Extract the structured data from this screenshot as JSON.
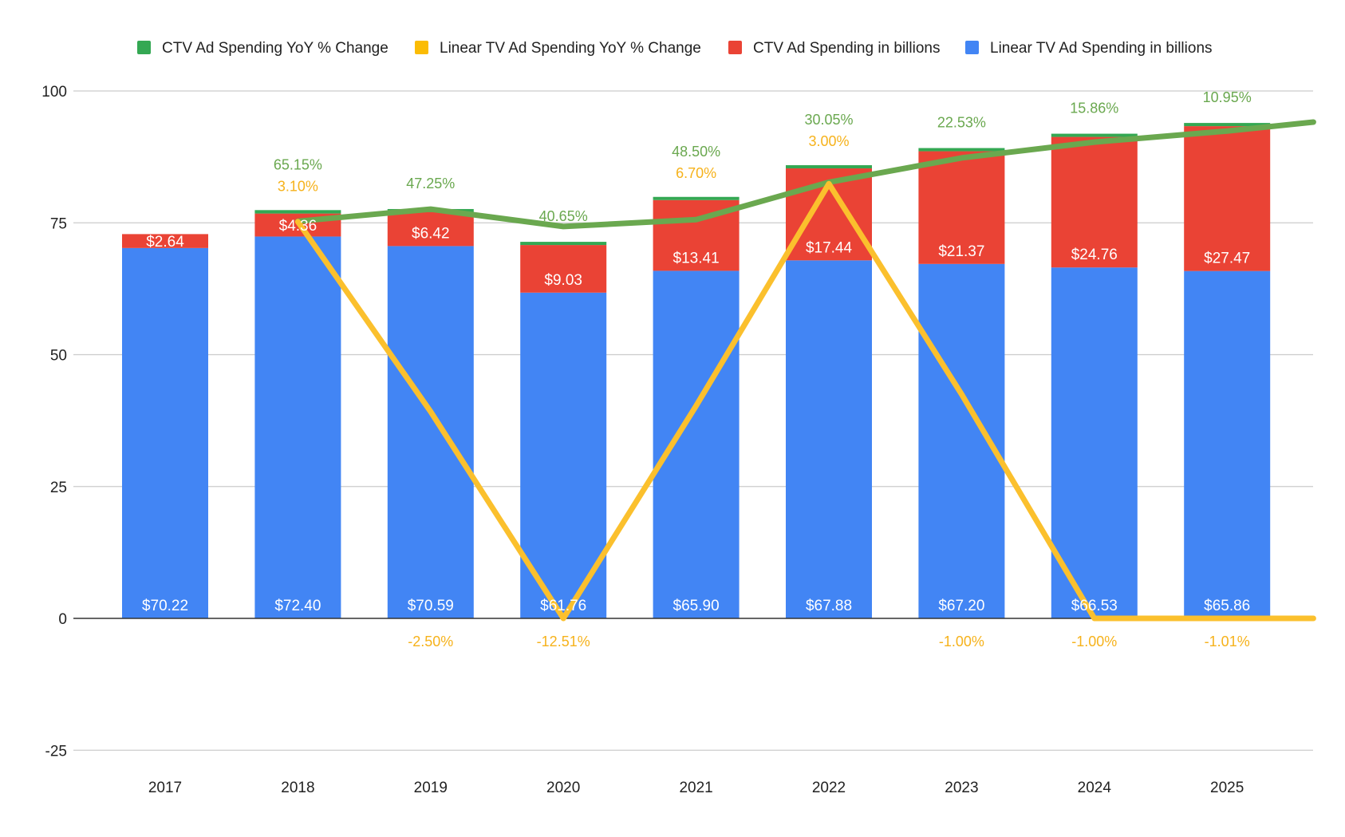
{
  "chart_data": {
    "type": "bar",
    "stacked": true,
    "title": "",
    "xlabel": "",
    "ylabel": "",
    "ylim": [
      -25,
      100
    ],
    "yticks": [
      -25,
      0,
      25,
      50,
      75,
      100
    ],
    "grid": true,
    "legend_position": "top",
    "categories": [
      "2017",
      "2018",
      "2019",
      "2020",
      "2021",
      "2022",
      "2023",
      "2024",
      "2025"
    ],
    "legend": [
      {
        "name": "CTV Ad Spending YoY % Change",
        "color": "#34a853"
      },
      {
        "name": "Linear TV Ad Spending YoY % Change",
        "color": "#fbbc04"
      },
      {
        "name": "CTV Ad Spending in billions",
        "color": "#ea4335"
      },
      {
        "name": "Linear TV Ad Spending in billions",
        "color": "#4285f4"
      }
    ],
    "series": [
      {
        "name": "Linear TV Ad Spending in billions",
        "kind": "bar",
        "color": "#4285f4",
        "values": [
          70.22,
          72.4,
          70.59,
          61.76,
          65.9,
          67.88,
          67.2,
          66.53,
          65.86
        ],
        "labels": [
          "$70.22",
          "$72.40",
          "$70.59",
          "$61.76",
          "$65.90",
          "$67.88",
          "$67.20",
          "$66.53",
          "$65.86"
        ]
      },
      {
        "name": "CTV Ad Spending in billions",
        "kind": "bar",
        "color": "#ea4335",
        "values": [
          2.64,
          4.36,
          6.42,
          9.03,
          13.41,
          17.44,
          21.37,
          24.76,
          27.47
        ],
        "labels": [
          "$2.64",
          "$4.36",
          "$6.42",
          "$9.03",
          "$13.41",
          "$17.44",
          "$21.37",
          "$24.76",
          "$27.47"
        ]
      },
      {
        "name": "CTV Ad Spending YoY % Change",
        "kind": "bar",
        "color": "#34a853",
        "values": [
          null,
          0.6515,
          0.4725,
          0.4065,
          0.485,
          0.3005,
          0.2253,
          0.1586,
          0.1095
        ],
        "labels": [
          "",
          "65.15%",
          "47.25%",
          "40.65%",
          "48.50%",
          "30.05%",
          "22.53%",
          "15.86%",
          "10.95%"
        ]
      },
      {
        "name": "Linear TV Ad Spending YoY % Change",
        "kind": "bar",
        "color": "#fbbc04",
        "values": [
          null,
          0.031,
          -0.025,
          -0.1251,
          0.067,
          0.03,
          -0.01,
          -0.01,
          -0.0101
        ],
        "labels": [
          "",
          "3.10%",
          "-2.50%",
          "-12.51%",
          "6.70%",
          "3.00%",
          "-1.00%",
          "-1.00%",
          "-1.01%"
        ]
      }
    ],
    "overlay_lines": [
      {
        "name": "CTV trend line",
        "color": "#6aa84f",
        "x_positions": [
          1,
          2,
          3,
          4,
          5,
          6,
          7,
          8,
          8.65
        ],
        "values": [
          75.3,
          77.6,
          74.3,
          75.6,
          82.7,
          87.3,
          90.3,
          92.4,
          94.1
        ]
      },
      {
        "name": "Linear TV trend line",
        "color": "#fbc02d",
        "x_positions": [
          1,
          2,
          3,
          4,
          5,
          6,
          7,
          8,
          8.65
        ],
        "values": [
          75.2,
          39.2,
          0,
          40.3,
          82.4,
          42.5,
          0,
          0,
          0
        ]
      }
    ]
  }
}
